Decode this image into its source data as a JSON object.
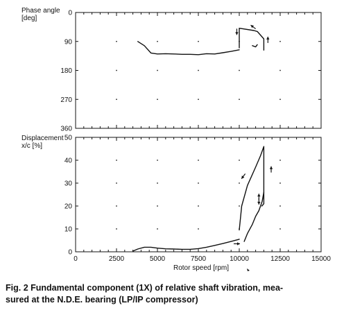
{
  "caption": {
    "line1": "Fig. 2  Fundamental component (1X) of relative shaft vibration, mea-",
    "line2": "sured at the N.D.E. bearing (LP/IP compressor)"
  },
  "chart_data": [
    {
      "type": "line",
      "ylabel_lines": [
        "Phase angle",
        "[deg]"
      ],
      "xlim": [
        0,
        15000
      ],
      "ylim": [
        0,
        360
      ],
      "y_inverted": true,
      "yticks": [
        0,
        90,
        180,
        270,
        360
      ],
      "ytick_labels": [
        "0",
        "90",
        "180",
        "270",
        "360"
      ],
      "grid": "dots",
      "series": [
        {
          "x": [
            3800,
            4200,
            4600,
            5000,
            5500,
            6000,
            6500,
            7000,
            7500,
            8000,
            8500,
            9000,
            9500,
            10000
          ],
          "y": [
            90,
            103,
            126,
            129,
            128,
            129,
            130,
            130,
            131,
            128,
            129,
            125,
            121,
            116
          ]
        },
        {
          "x": [
            10000,
            10000,
            10900,
            11100,
            11500,
            11500
          ],
          "y": [
            110,
            49,
            56,
            59,
            82,
            117
          ]
        },
        {
          "x": [
            10800,
            11000,
            11100
          ],
          "y": [
            103,
            107,
            100
          ]
        }
      ],
      "arrows": [
        {
          "x": 9850,
          "y": 60,
          "dir": "down"
        },
        {
          "x": 10850,
          "y": 45,
          "dir": "up-left"
        },
        {
          "x": 11750,
          "y": 85,
          "dir": "up"
        }
      ]
    },
    {
      "type": "line",
      "ylabel_lines": [
        "Displacement",
        "x/c [%]"
      ],
      "xlabel": "Rotor speed [rpm]",
      "xlim": [
        0,
        15000
      ],
      "ylim": [
        0,
        50
      ],
      "xticks": [
        0,
        2500,
        5000,
        7500,
        10000,
        12500,
        15000
      ],
      "xtick_labels": [
        "0",
        "2500",
        "5000",
        "7500",
        "10000",
        "12500",
        "15000"
      ],
      "yticks": [
        0,
        10,
        20,
        30,
        40,
        50
      ],
      "ytick_labels": [
        "0",
        "10",
        "20",
        "30",
        "40",
        "50"
      ],
      "grid": "dots",
      "series": [
        {
          "x": [
            3500,
            3800,
            4200,
            4600,
            5000,
            5500,
            6000,
            6500,
            7000,
            7500,
            8000,
            8500,
            9000,
            9500,
            10000
          ],
          "y": [
            0.3,
            1.2,
            2.0,
            2.0,
            1.6,
            1.3,
            1.2,
            1.1,
            1.1,
            1.4,
            2.0,
            2.8,
            3.6,
            4.5,
            5.5
          ]
        },
        {
          "x": [
            10000,
            10150,
            10500,
            11000,
            11300,
            11500,
            11500,
            11380
          ],
          "y": [
            9.5,
            20,
            29,
            37,
            42,
            46,
            21,
            20
          ]
        },
        {
          "x": [
            10300,
            10500,
            10800,
            11000,
            11200,
            11400,
            11500
          ],
          "y": [
            4.5,
            8,
            12,
            15.5,
            18,
            22,
            26
          ]
        }
      ],
      "arrows": [
        {
          "x": 10250,
          "y": 33,
          "dir": "down-left"
        },
        {
          "x": 11200,
          "y": 24,
          "dir": "up"
        },
        {
          "x": 11200,
          "y": 22,
          "dir": "down"
        },
        {
          "x": 11950,
          "y": 36,
          "dir": "up"
        },
        {
          "x": 9850,
          "y": 3.5,
          "dir": "right"
        }
      ]
    }
  ]
}
